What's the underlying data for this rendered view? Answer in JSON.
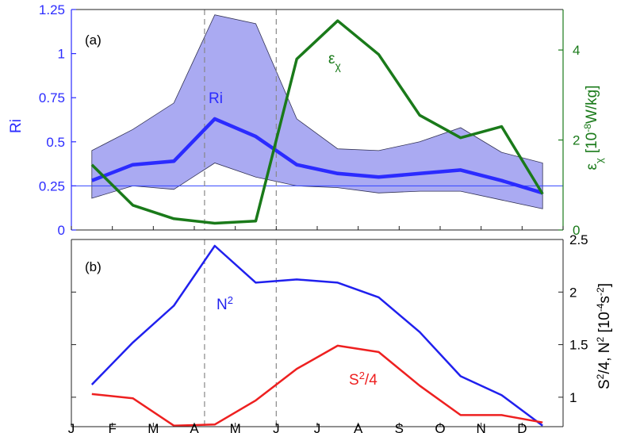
{
  "chart_data": [
    {
      "panel": "(a)",
      "type": "line",
      "months": [
        "J",
        "F",
        "M",
        "A",
        "M",
        "J",
        "J",
        "A",
        "S",
        "O",
        "N",
        "D"
      ],
      "left_axis": {
        "label": "Ri",
        "ylim": [
          0,
          1.25
        ],
        "ticks": [
          0,
          0.25,
          0.5,
          0.75,
          1,
          1.25
        ],
        "tick_labels": [
          "0",
          "0.25",
          "0.5",
          "0.75",
          "1",
          "1.25"
        ],
        "color": "#2b2bff"
      },
      "right_axis": {
        "label_base": "ε",
        "label_sub": "χ",
        "label_unit_pre": "[10",
        "label_unit_sup": "-8",
        "label_unit_post": "W/kg]",
        "ylim": [
          0,
          4.9
        ],
        "ticks": [
          0,
          2,
          4
        ],
        "tick_labels": [
          "0",
          "2",
          "4"
        ],
        "color": "#1a7a1a"
      },
      "band": {
        "x": [
          0.5,
          1.5,
          2.5,
          3.5,
          4.5,
          5.5,
          6.5,
          7.5,
          8.5,
          9.5,
          10.5,
          11.5
        ],
        "upper": [
          0.45,
          0.57,
          0.72,
          1.22,
          1.17,
          0.63,
          0.46,
          0.45,
          0.5,
          0.58,
          0.44,
          0.38
        ],
        "lower": [
          0.18,
          0.25,
          0.23,
          0.38,
          0.3,
          0.25,
          0.24,
          0.21,
          0.22,
          0.22,
          0.17,
          0.12
        ],
        "fill": "#aaaaf2",
        "stroke": "#333355"
      },
      "series": [
        {
          "name": "Ri",
          "axis": "left",
          "x": [
            0.5,
            1.5,
            2.5,
            3.5,
            4.5,
            5.5,
            6.5,
            7.5,
            8.5,
            9.5,
            10.5,
            11.5
          ],
          "y": [
            0.28,
            0.37,
            0.39,
            0.63,
            0.53,
            0.37,
            0.32,
            0.3,
            0.32,
            0.34,
            0.28,
            0.21
          ],
          "color": "#2b2bff"
        },
        {
          "name_base": "ε",
          "name_sub": "χ",
          "axis": "right",
          "x": [
            0.5,
            1.5,
            2.5,
            3.5,
            4.5,
            5.5,
            6.5,
            7.5,
            8.5,
            9.5,
            10.5,
            11.5
          ],
          "y": [
            1.45,
            0.55,
            0.25,
            0.15,
            0.2,
            3.8,
            4.65,
            3.9,
            2.55,
            2.05,
            2.3,
            0.8
          ],
          "color": "#1a7a1a"
        }
      ],
      "reference_line": {
        "y": 0.25,
        "axis": "left",
        "color": "#3344ff"
      },
      "vlines": [
        3.25,
        5.0
      ]
    },
    {
      "panel": "(b)",
      "type": "line",
      "months": [
        "J",
        "F",
        "M",
        "A",
        "M",
        "J",
        "J",
        "A",
        "S",
        "O",
        "N",
        "D"
      ],
      "right_axis": {
        "label_pre": "S",
        "label_sup1": "2",
        "label_mid": "/4, N",
        "label_sup2": "2",
        "label_unit_pre": " [10",
        "label_unit_sup": "-4",
        "label_unit_mid": "s",
        "label_unit_sup2": "-2",
        "label_unit_post": "]",
        "ylim": [
          0.72,
          2.5
        ],
        "ticks": [
          1,
          1.5,
          2,
          2.5
        ],
        "tick_labels": [
          "1",
          "1.5",
          "2",
          "2.5"
        ],
        "color": "#000000"
      },
      "series": [
        {
          "name_base": "N",
          "name_sup": "2",
          "x": [
            0.5,
            1.5,
            2.5,
            3.5,
            4.5,
            5.5,
            6.5,
            7.5,
            8.5,
            9.5,
            10.5,
            11.5
          ],
          "y": [
            1.12,
            1.52,
            1.87,
            2.44,
            2.09,
            2.12,
            2.09,
            1.95,
            1.62,
            1.2,
            1.02,
            0.73
          ],
          "color": "#2020ee"
        },
        {
          "name_base": "S",
          "name_sup": "2",
          "name_post": "/4",
          "x": [
            0.5,
            1.5,
            2.5,
            3.5,
            4.5,
            5.5,
            6.5,
            7.5,
            8.5,
            9.5,
            10.5,
            11.5
          ],
          "y": [
            1.03,
            0.99,
            0.73,
            0.74,
            0.97,
            1.27,
            1.49,
            1.43,
            1.11,
            0.83,
            0.83,
            0.76
          ],
          "color": "#ee2020"
        }
      ],
      "vlines": [
        3.25,
        5.0
      ]
    }
  ]
}
